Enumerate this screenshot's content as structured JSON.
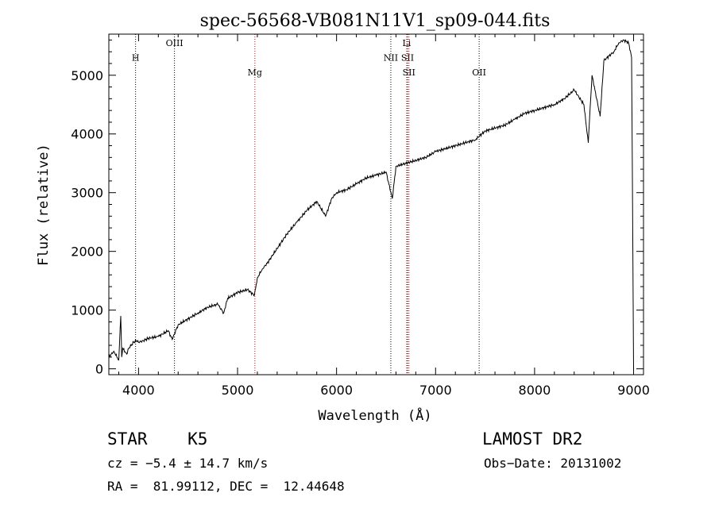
{
  "chart_data": {
    "type": "line",
    "title": "spec-56568-VB081N11V1_sp09-044.fits",
    "xlabel": "Wavelength (Å)",
    "ylabel": "Flux (relative)",
    "xlim": [
      3700,
      9100
    ],
    "ylim": [
      -100,
      5700
    ],
    "xticks": [
      4000,
      5000,
      6000,
      7000,
      8000,
      9000
    ],
    "yticks": [
      0,
      1000,
      2000,
      3000,
      4000,
      5000
    ],
    "grid": false,
    "series": [
      {
        "name": "flux",
        "x": [
          3700,
          3750,
          3800,
          3820,
          3830,
          3840,
          3880,
          3900,
          3950,
          3980,
          4000,
          4050,
          4100,
          4200,
          4300,
          4340,
          4400,
          4500,
          4600,
          4700,
          4800,
          4860,
          4900,
          5000,
          5100,
          5170,
          5200,
          5250,
          5300,
          5400,
          5500,
          5600,
          5700,
          5800,
          5890,
          5950,
          6000,
          6100,
          6200,
          6300,
          6400,
          6500,
          6563,
          6600,
          6700,
          6800,
          6900,
          7000,
          7100,
          7200,
          7300,
          7400,
          7500,
          7600,
          7700,
          7800,
          7900,
          8000,
          8100,
          8200,
          8300,
          8400,
          8498,
          8542,
          8580,
          8662,
          8700,
          8800,
          8850,
          8900,
          8950,
          8980,
          9000
        ],
        "y": [
          200,
          300,
          150,
          900,
          200,
          350,
          250,
          350,
          450,
          480,
          450,
          480,
          520,
          550,
          650,
          500,
          750,
          850,
          950,
          1050,
          1100,
          950,
          1200,
          1300,
          1350,
          1250,
          1550,
          1700,
          1800,
          2050,
          2300,
          2500,
          2700,
          2850,
          2600,
          2900,
          3000,
          3050,
          3150,
          3250,
          3300,
          3350,
          2900,
          3450,
          3500,
          3550,
          3600,
          3700,
          3750,
          3800,
          3850,
          3900,
          4050,
          4100,
          4150,
          4250,
          4350,
          4400,
          4450,
          4500,
          4600,
          4750,
          4500,
          3850,
          5000,
          4300,
          5250,
          5400,
          5550,
          5600,
          5550,
          5300,
          0
        ]
      }
    ],
    "lines": [
      {
        "label": "H",
        "x": 3970,
        "label_y": 5250,
        "color": "#000000"
      },
      {
        "label": "OIII",
        "x": 4363,
        "label_y": 5500,
        "color": "#000000"
      },
      {
        "label": "Mg",
        "x": 5175,
        "label_y": 5000,
        "color": "#e60000"
      },
      {
        "label": "NII",
        "x": 6548,
        "label_y": 5250,
        "color": "#000000"
      },
      {
        "label": "Li",
        "x": 6708,
        "label_y": 5500,
        "color": "#e60000"
      },
      {
        "label": "SII",
        "x": 6717,
        "label_y": 5250,
        "color": "#000000"
      },
      {
        "label": "SII",
        "x": 6731,
        "label_y": 5000,
        "color": "#e60000"
      },
      {
        "label": "OII",
        "x": 7440,
        "label_y": 5000,
        "color": "#000000"
      }
    ]
  },
  "info": {
    "object": "STAR    K5",
    "survey": "LAMOST DR2",
    "cz": "cz = −5.4 ± 14.7 km/s",
    "obs_date": "Obs−Date: 20131002",
    "coords": "RA =  81.99112, DEC =  12.44648"
  }
}
